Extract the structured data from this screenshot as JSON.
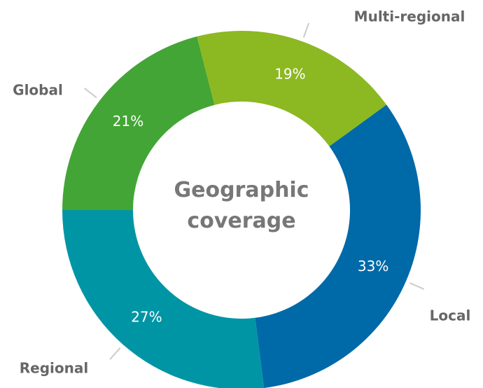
{
  "chart_data": {
    "type": "donut",
    "title": "Geographic coverage",
    "categories": [
      "Local",
      "Regional",
      "Global",
      "Multi-regional"
    ],
    "values": [
      33,
      27,
      21,
      19
    ],
    "value_labels": [
      "33%",
      "27%",
      "21%",
      "19%"
    ],
    "colors": [
      "#0069a8",
      "#0095a5",
      "#43a535",
      "#8cb822"
    ]
  }
}
